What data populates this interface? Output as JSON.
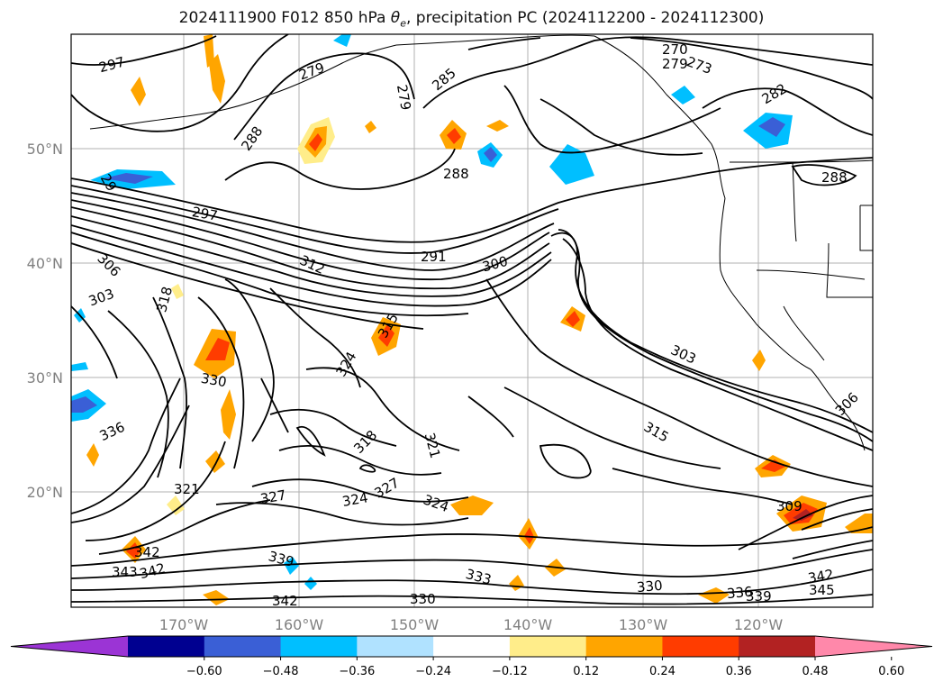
{
  "title_main": "2024111900 F012 850 hPa ",
  "title_theta": "θ",
  "title_theta_sub": "e",
  "title_rest": ", precipitation PC (2024112200 - 2024112300)",
  "lat_ticks": [
    "50°N",
    "40°N",
    "30°N",
    "20°N"
  ],
  "lon_ticks": [
    "170°W",
    "160°W",
    "150°W",
    "140°W",
    "130°W",
    "120°W"
  ],
  "contour_labels": [
    "297",
    "279",
    "279",
    "285",
    "270",
    "279",
    "273",
    "282",
    "288",
    "288",
    "29",
    "297",
    "288",
    "291",
    "300",
    "312",
    "306",
    "303",
    "318",
    "315",
    "303",
    "324",
    "330",
    "306",
    "315",
    "318",
    "321",
    "309",
    "336",
    "327",
    "324",
    "327",
    "324",
    "321",
    "333",
    "336",
    "339",
    "342",
    "330",
    "342",
    "345",
    "330",
    "342",
    "339",
    "343",
    "342",
    "330"
  ],
  "colorbar": {
    "labels": [
      "−0.60",
      "−0.48",
      "−0.36",
      "−0.24",
      "−0.12",
      "0.12",
      "0.24",
      "0.36",
      "0.48",
      "0.60"
    ],
    "colors": [
      "#9b34d5",
      "#000090",
      "#3a5fd6",
      "#00bfff",
      "#b0e2ff",
      "#ffffff",
      "#ffed8a",
      "#ffa500",
      "#ff3c00",
      "#b22222",
      "#ff88aa"
    ],
    "extend": "both"
  }
}
